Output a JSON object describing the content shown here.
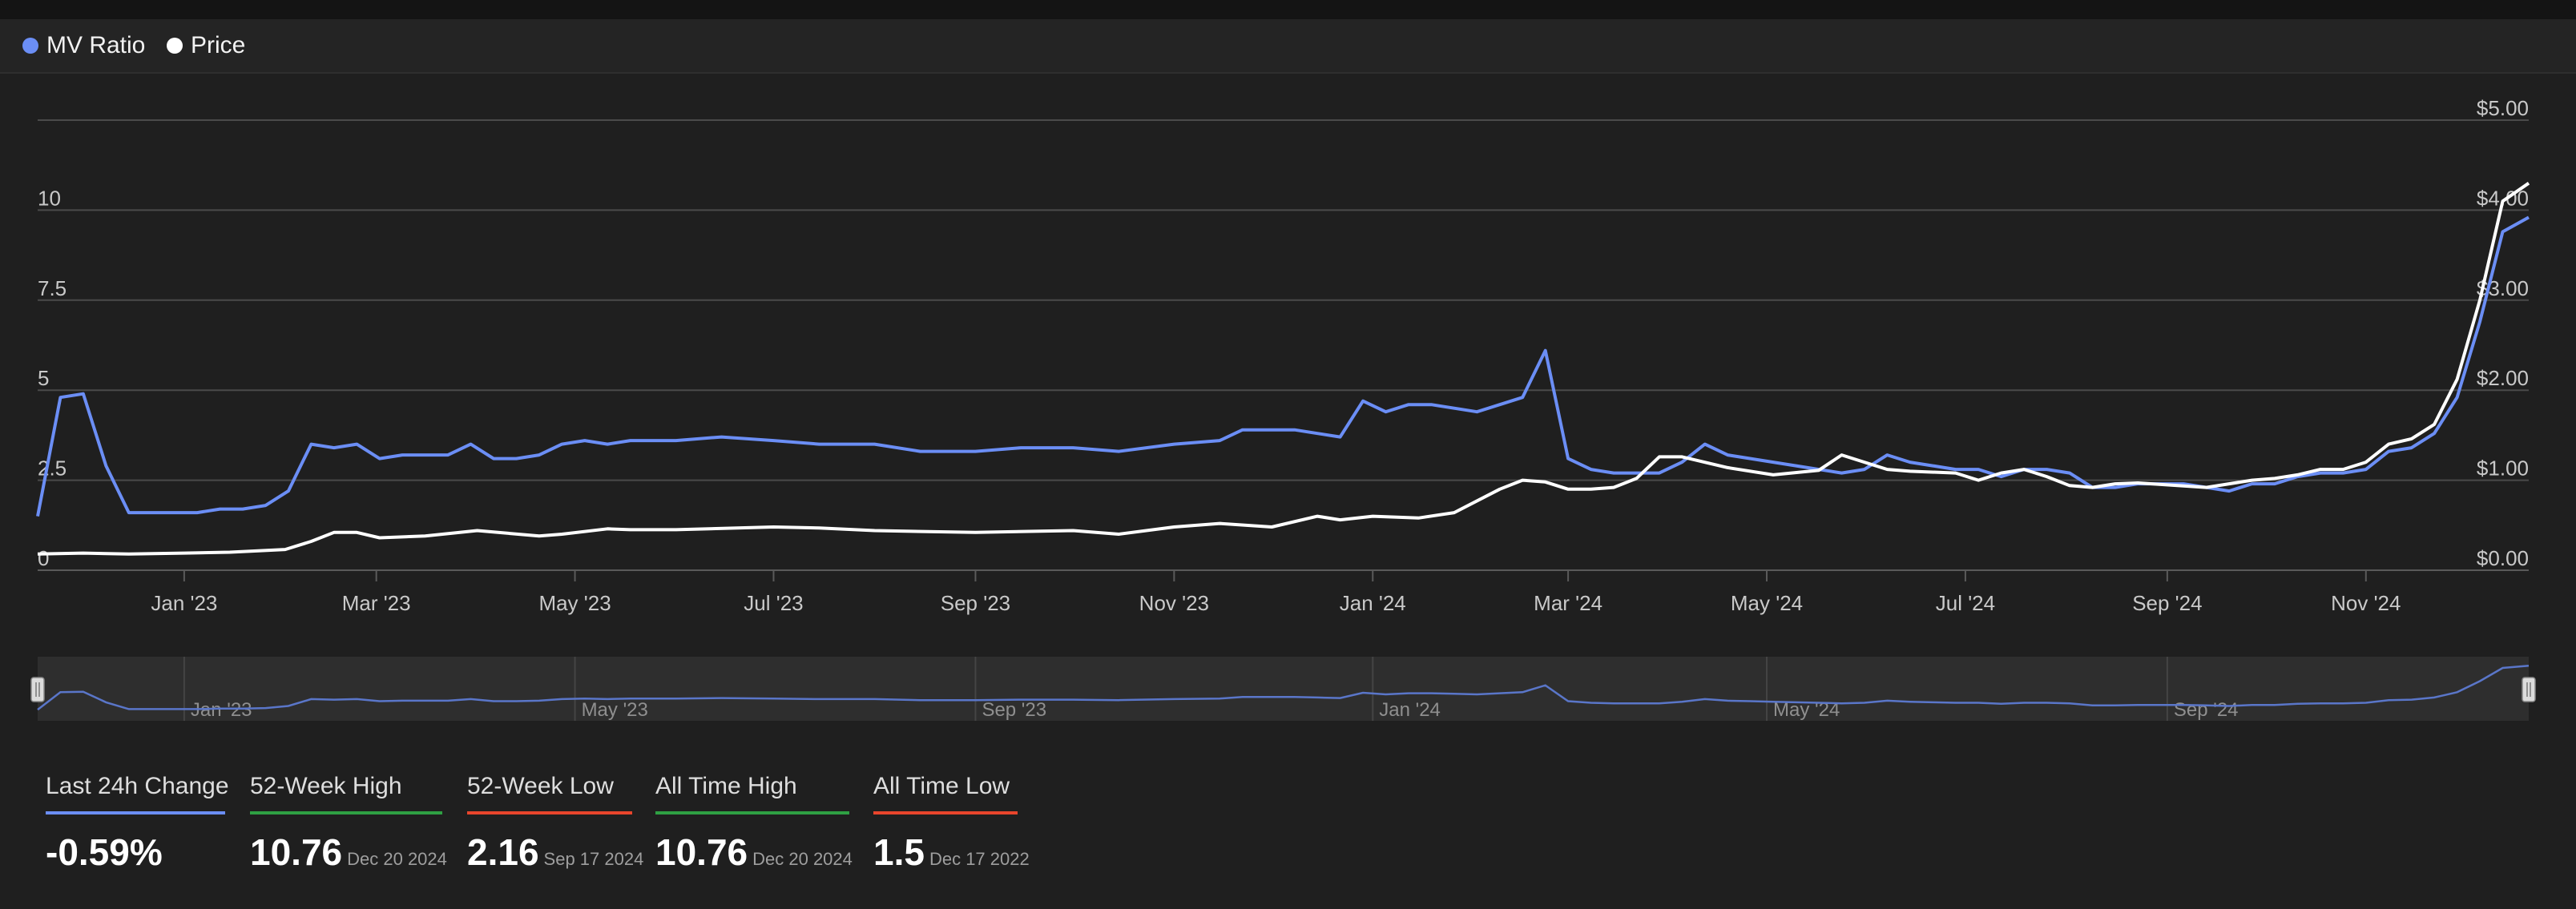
{
  "chart_data": {
    "type": "line",
    "legend": [
      {
        "name": "MV Ratio",
        "color": "#6b8ef5"
      },
      {
        "name": "Price",
        "color": "#ffffff"
      }
    ],
    "x_range": [
      "2022-11-17",
      "2024-12-21"
    ],
    "x_ticks": [
      {
        "date": "2023-01-01",
        "label": "Jan '23"
      },
      {
        "date": "2023-03-01",
        "label": "Mar '23"
      },
      {
        "date": "2023-05-01",
        "label": "May '23"
      },
      {
        "date": "2023-07-01",
        "label": "Jul '23"
      },
      {
        "date": "2023-09-01",
        "label": "Sep '23"
      },
      {
        "date": "2023-11-01",
        "label": "Nov '23"
      },
      {
        "date": "2024-01-01",
        "label": "Jan '24"
      },
      {
        "date": "2024-03-01",
        "label": "Mar '24"
      },
      {
        "date": "2024-05-01",
        "label": "May '24"
      },
      {
        "date": "2024-07-01",
        "label": "Jul '24"
      },
      {
        "date": "2024-09-01",
        "label": "Sep '24"
      },
      {
        "date": "2024-11-01",
        "label": "Nov '24"
      }
    ],
    "left_axis": {
      "range": [
        0,
        12.5
      ],
      "ticks": [
        {
          "v": 0,
          "label": "0"
        },
        {
          "v": 2.5,
          "label": "2.5"
        },
        {
          "v": 5,
          "label": "5"
        },
        {
          "v": 7.5,
          "label": "7.5"
        },
        {
          "v": 10,
          "label": "10"
        }
      ]
    },
    "right_axis": {
      "range": [
        0,
        5
      ],
      "ticks": [
        {
          "v": 0,
          "label": "$0.00"
        },
        {
          "v": 1,
          "label": "$1.00"
        },
        {
          "v": 2,
          "label": "$2.00"
        },
        {
          "v": 3,
          "label": "$3.00"
        },
        {
          "v": 4,
          "label": "$4.00"
        },
        {
          "v": 5,
          "label": "$5.00"
        }
      ]
    },
    "navigator_ticks": [
      {
        "date": "2023-01-01",
        "label": "Jan '23"
      },
      {
        "date": "2023-05-01",
        "label": "May '23"
      },
      {
        "date": "2023-09-01",
        "label": "Sep '23"
      },
      {
        "date": "2024-01-01",
        "label": "Jan '24"
      },
      {
        "date": "2024-05-01",
        "label": "May '24"
      },
      {
        "date": "2024-09-01",
        "label": "Sep '24"
      }
    ],
    "series": [
      {
        "name": "MV Ratio",
        "axis": "left",
        "color": "#6b8ef5",
        "x": [
          "2022-11-17",
          "2022-11-24",
          "2022-12-01",
          "2022-12-08",
          "2022-12-15",
          "2022-12-22",
          "2022-12-29",
          "2023-01-05",
          "2023-01-12",
          "2023-01-19",
          "2023-01-26",
          "2023-02-02",
          "2023-02-09",
          "2023-02-16",
          "2023-02-23",
          "2023-03-02",
          "2023-03-09",
          "2023-03-16",
          "2023-03-23",
          "2023-03-30",
          "2023-04-06",
          "2023-04-13",
          "2023-04-20",
          "2023-04-27",
          "2023-05-04",
          "2023-05-11",
          "2023-05-18",
          "2023-06-01",
          "2023-06-15",
          "2023-07-01",
          "2023-07-15",
          "2023-08-01",
          "2023-08-15",
          "2023-09-01",
          "2023-09-15",
          "2023-10-01",
          "2023-10-15",
          "2023-11-01",
          "2023-11-15",
          "2023-11-22",
          "2023-12-01",
          "2023-12-08",
          "2023-12-15",
          "2023-12-22",
          "2023-12-29",
          "2024-01-05",
          "2024-01-12",
          "2024-01-19",
          "2024-01-26",
          "2024-02-02",
          "2024-02-09",
          "2024-02-16",
          "2024-02-23",
          "2024-03-01",
          "2024-03-08",
          "2024-03-15",
          "2024-03-22",
          "2024-03-29",
          "2024-04-05",
          "2024-04-12",
          "2024-04-19",
          "2024-04-26",
          "2024-05-03",
          "2024-05-10",
          "2024-05-17",
          "2024-05-24",
          "2024-05-31",
          "2024-06-07",
          "2024-06-14",
          "2024-06-21",
          "2024-06-28",
          "2024-07-05",
          "2024-07-12",
          "2024-07-19",
          "2024-07-26",
          "2024-08-02",
          "2024-08-09",
          "2024-08-16",
          "2024-08-23",
          "2024-08-30",
          "2024-09-06",
          "2024-09-13",
          "2024-09-20",
          "2024-09-27",
          "2024-10-04",
          "2024-10-11",
          "2024-10-18",
          "2024-10-25",
          "2024-11-01",
          "2024-11-08",
          "2024-11-15",
          "2024-11-22",
          "2024-11-29",
          "2024-12-06",
          "2024-12-13",
          "2024-12-21"
        ],
        "values": [
          1.5,
          4.8,
          4.9,
          2.9,
          1.6,
          1.6,
          1.6,
          1.6,
          1.7,
          1.7,
          1.8,
          2.2,
          3.5,
          3.4,
          3.5,
          3.1,
          3.2,
          3.2,
          3.2,
          3.5,
          3.1,
          3.1,
          3.2,
          3.5,
          3.6,
          3.5,
          3.6,
          3.6,
          3.7,
          3.6,
          3.5,
          3.5,
          3.3,
          3.3,
          3.4,
          3.4,
          3.3,
          3.5,
          3.6,
          3.9,
          3.9,
          3.9,
          3.8,
          3.7,
          4.7,
          4.4,
          4.6,
          4.6,
          4.5,
          4.4,
          4.6,
          4.8,
          6.1,
          3.1,
          2.8,
          2.7,
          2.7,
          2.7,
          3.0,
          3.5,
          3.2,
          3.1,
          3.0,
          2.9,
          2.8,
          2.7,
          2.8,
          3.2,
          3.0,
          2.9,
          2.8,
          2.8,
          2.6,
          2.8,
          2.8,
          2.7,
          2.3,
          2.3,
          2.4,
          2.4,
          2.4,
          2.3,
          2.2,
          2.4,
          2.4,
          2.6,
          2.7,
          2.7,
          2.8,
          3.3,
          3.4,
          3.8,
          4.8,
          6.9,
          9.4,
          9.8
        ]
      },
      {
        "name": "Price",
        "axis": "right",
        "color": "#ffffff",
        "x": [
          "2022-11-17",
          "2022-12-01",
          "2022-12-15",
          "2023-01-01",
          "2023-01-15",
          "2023-02-01",
          "2023-02-09",
          "2023-02-16",
          "2023-02-23",
          "2023-03-02",
          "2023-03-16",
          "2023-04-01",
          "2023-04-20",
          "2023-04-27",
          "2023-05-11",
          "2023-05-18",
          "2023-06-01",
          "2023-07-01",
          "2023-07-15",
          "2023-08-01",
          "2023-09-01",
          "2023-10-01",
          "2023-10-15",
          "2023-11-01",
          "2023-11-15",
          "2023-12-01",
          "2023-12-15",
          "2023-12-22",
          "2024-01-01",
          "2024-01-15",
          "2024-01-26",
          "2024-02-09",
          "2024-02-16",
          "2024-02-23",
          "2024-03-01",
          "2024-03-08",
          "2024-03-15",
          "2024-03-22",
          "2024-03-29",
          "2024-04-05",
          "2024-04-19",
          "2024-05-03",
          "2024-05-17",
          "2024-05-24",
          "2024-05-31",
          "2024-06-07",
          "2024-06-14",
          "2024-06-28",
          "2024-07-05",
          "2024-07-12",
          "2024-07-19",
          "2024-07-26",
          "2024-08-02",
          "2024-08-09",
          "2024-08-16",
          "2024-08-23",
          "2024-09-13",
          "2024-09-27",
          "2024-10-04",
          "2024-10-11",
          "2024-10-18",
          "2024-10-25",
          "2024-11-01",
          "2024-11-08",
          "2024-11-15",
          "2024-11-22",
          "2024-11-29",
          "2024-12-06",
          "2024-12-13",
          "2024-12-21"
        ],
        "values": [
          0.18,
          0.19,
          0.18,
          0.19,
          0.2,
          0.23,
          0.32,
          0.42,
          0.42,
          0.36,
          0.38,
          0.44,
          0.38,
          0.4,
          0.46,
          0.45,
          0.45,
          0.48,
          0.47,
          0.44,
          0.42,
          0.44,
          0.4,
          0.48,
          0.52,
          0.48,
          0.6,
          0.56,
          0.6,
          0.58,
          0.64,
          0.9,
          1.0,
          0.98,
          0.9,
          0.9,
          0.92,
          1.02,
          1.26,
          1.26,
          1.14,
          1.06,
          1.11,
          1.28,
          1.2,
          1.12,
          1.1,
          1.08,
          1.0,
          1.08,
          1.12,
          1.04,
          0.94,
          0.92,
          0.96,
          0.97,
          0.92,
          1.0,
          1.02,
          1.06,
          1.12,
          1.12,
          1.2,
          1.4,
          1.46,
          1.62,
          2.12,
          3.0,
          4.1,
          4.3
        ]
      }
    ]
  },
  "stats": [
    {
      "label": "Last 24h Change",
      "value": "-0.59%",
      "date": "",
      "color": "#6b8ef5"
    },
    {
      "label": "52-Week High",
      "value": "10.76",
      "date": "Dec 20 2024",
      "color": "#2ea043"
    },
    {
      "label": "52-Week Low",
      "value": "2.16",
      "date": "Sep 17 2024",
      "color": "#e8452c"
    },
    {
      "label": "All Time High",
      "value": "10.76",
      "date": "Dec 20 2024",
      "color": "#2ea043"
    },
    {
      "label": "All Time Low",
      "value": "1.5",
      "date": "Dec 17 2022",
      "color": "#e8452c"
    }
  ]
}
